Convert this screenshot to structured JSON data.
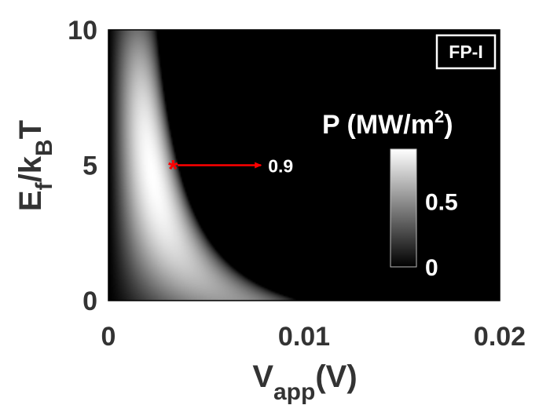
{
  "chart_data": {
    "type": "heatmap",
    "xlabel": "V",
    "xlabel_sub": "app",
    "xlabel_suffix": "(V)",
    "ylabel": "E",
    "ylabel_sub1": "f",
    "ylabel_mid": "/k",
    "ylabel_sub2": "B",
    "ylabel_suffix": "T",
    "xlim": [
      0,
      0.02
    ],
    "ylim": [
      0,
      10
    ],
    "x_ticks": [
      0,
      0.01,
      0.02
    ],
    "x_tick_labels": [
      "0",
      "0.01",
      "0.02"
    ],
    "y_ticks": [
      0,
      5,
      10
    ],
    "y_tick_labels": [
      "0",
      "5",
      "10"
    ],
    "colormap": "gray",
    "colorbar": {
      "title": "P (MW/m",
      "title_sup": "2",
      "title_close": ")",
      "range": [
        0,
        0.9
      ],
      "ticks": [
        0,
        0.5
      ],
      "tick_labels": [
        "0",
        "0.5"
      ]
    },
    "marker": {
      "x": 0.0033,
      "y": 5,
      "symbol": "*",
      "color": "#ff0000",
      "value_label": "0.9",
      "arrow_to_x": 0.0078
    },
    "annotation_box": "FP-I",
    "peak_value": 0.9
  }
}
